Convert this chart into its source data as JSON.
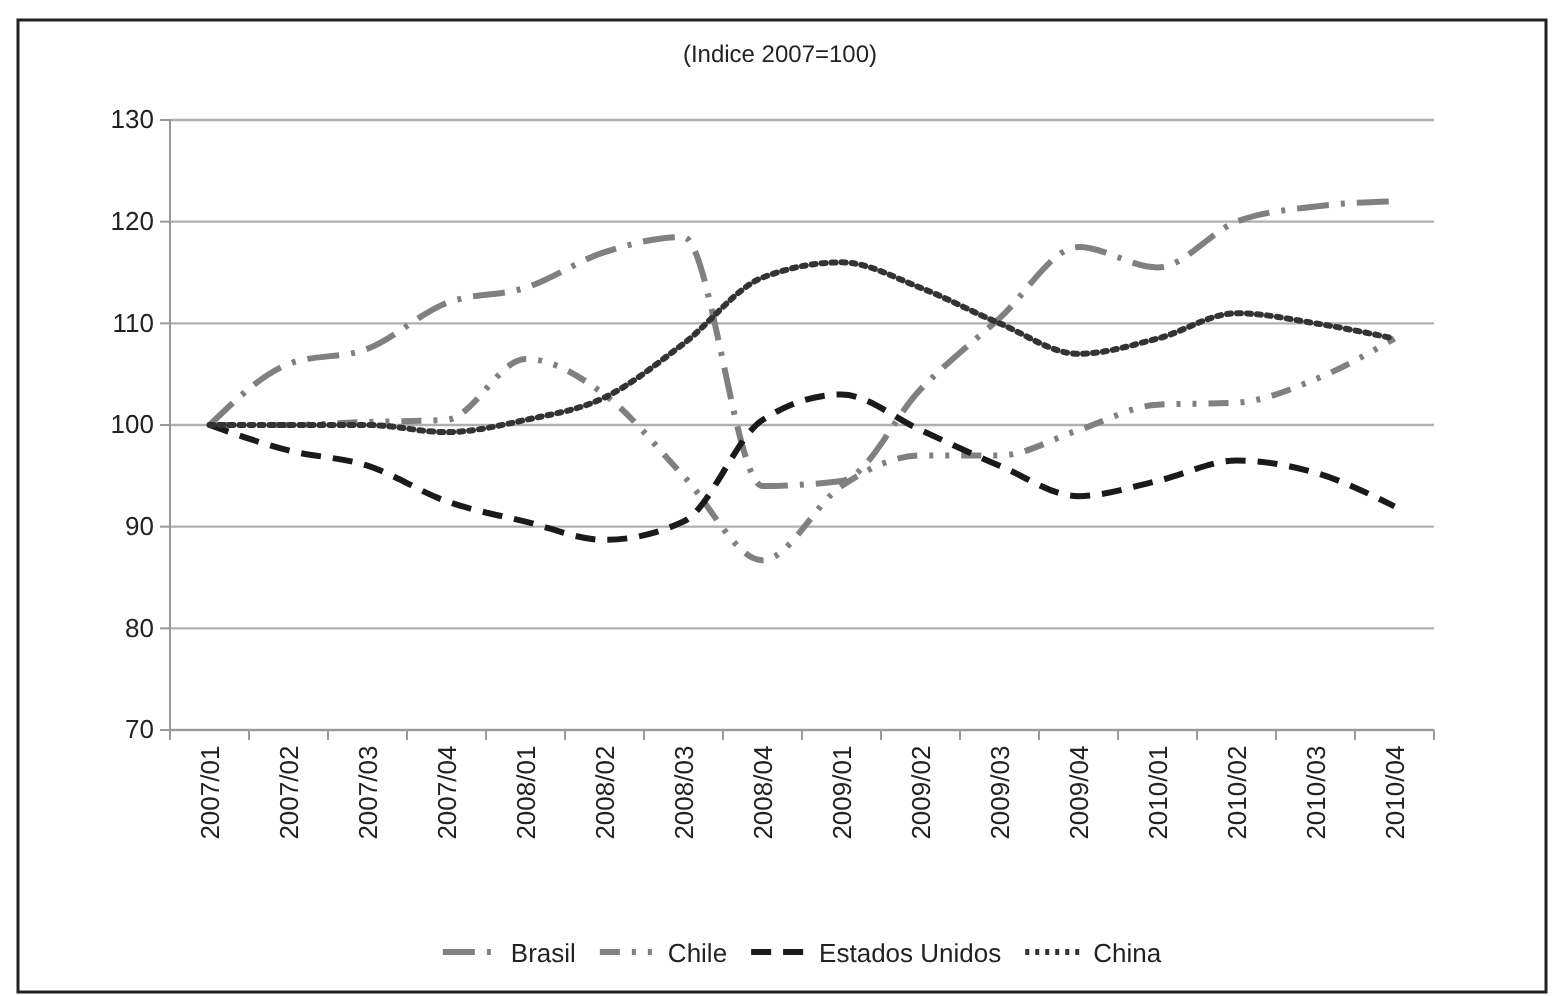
{
  "chart_data": {
    "type": "line",
    "subtitle": "(Indice 2007=100)",
    "categories": [
      "2007/01",
      "2007/02",
      "2007/03",
      "2007/04",
      "2008/01",
      "2008/02",
      "2008/03",
      "2008/04",
      "2009/01",
      "2009/02",
      "2009/03",
      "2009/04",
      "2010/01",
      "2010/02",
      "2010/03",
      "2010/04"
    ],
    "series": [
      {
        "name": "Brasil",
        "color": "#808080",
        "line_style": "dashdot",
        "values": [
          100,
          106,
          107.5,
          112,
          113.5,
          117,
          118.5,
          94,
          94.5,
          103.5,
          110.5,
          117.5,
          115.5,
          120,
          121.5,
          122
        ]
      },
      {
        "name": "Chile",
        "color": "#808080",
        "line_style": "dashdotdot",
        "values": [
          100,
          100,
          100.3,
          100.5,
          106.5,
          103,
          95,
          86.7,
          94,
          97,
          97,
          99.5,
          102,
          102.2,
          104.5,
          108.5
        ]
      },
      {
        "name": "Estados Unidos",
        "color": "#1a1a1a",
        "line_style": "dashed",
        "values": [
          100,
          97.5,
          96,
          92.5,
          90.5,
          88.7,
          90.5,
          100.5,
          103,
          99.5,
          96,
          93,
          94.5,
          96.5,
          95.3,
          92
        ]
      },
      {
        "name": "China",
        "color": "#333333",
        "line_style": "dotted",
        "values": [
          100,
          100,
          100,
          99.3,
          100.5,
          102.7,
          108,
          114.5,
          116,
          113.5,
          110,
          107,
          108.5,
          111,
          110,
          108.5
        ]
      }
    ],
    "ylim": [
      70,
      130
    ],
    "yticks": [
      70,
      80,
      90,
      100,
      110,
      120,
      130
    ],
    "grid": "y",
    "legend": "bottom",
    "marker": "none"
  }
}
